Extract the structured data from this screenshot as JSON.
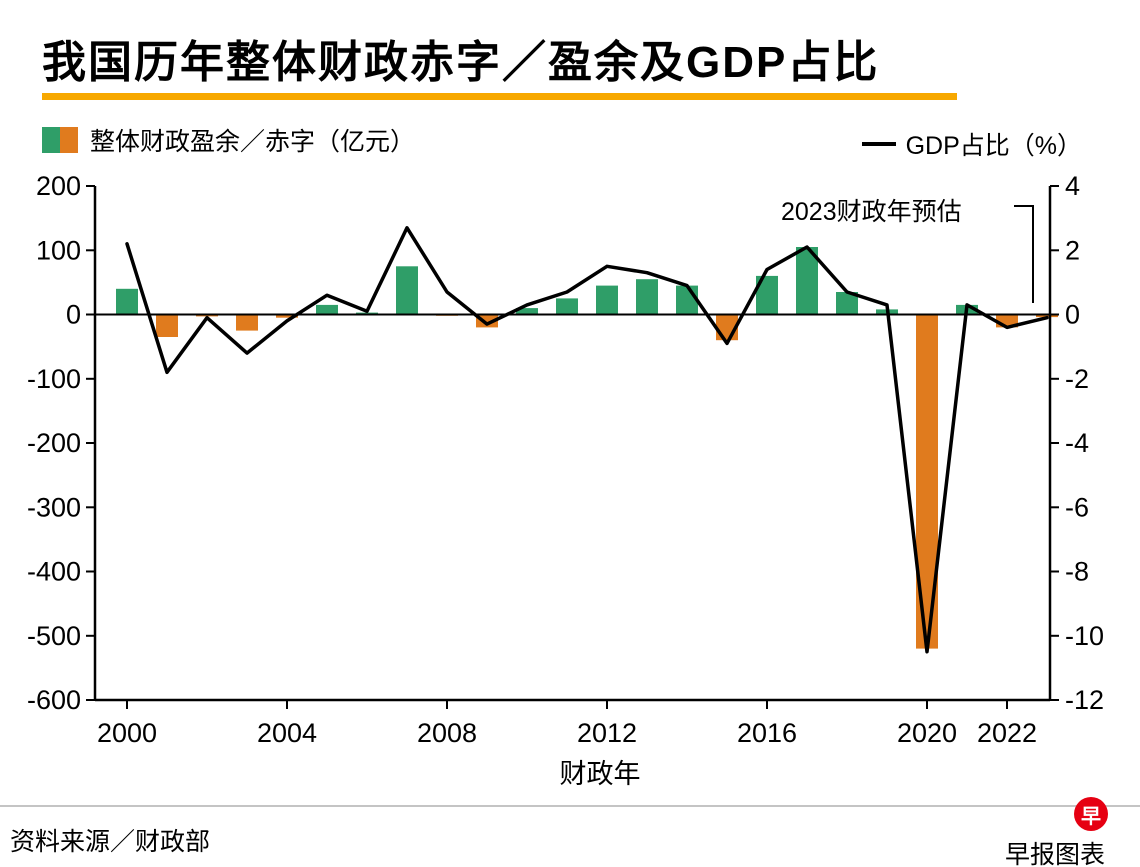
{
  "header": {
    "title": "我国历年整体财政赤字／盈余及GDP占比",
    "underline_color": "#f7a800"
  },
  "legend": {
    "bars_label": "整体财政盈余／赤字（亿元）",
    "line_label": "GDP占比（%）"
  },
  "annotation": {
    "text": "2023财政年预估"
  },
  "footer": {
    "source": "资料来源／财政部",
    "credit": "早报图表",
    "logo_char": "早",
    "logo_color": "#e60012"
  },
  "chart_data": {
    "type": "bar",
    "title": "我国历年整体财政赤字／盈余及GDP占比",
    "x": [
      2000,
      2001,
      2002,
      2003,
      2004,
      2005,
      2006,
      2007,
      2008,
      2009,
      2010,
      2011,
      2012,
      2013,
      2014,
      2015,
      2016,
      2017,
      2018,
      2019,
      2020,
      2021,
      2022,
      2023
    ],
    "series": [
      {
        "name": "整体财政盈余／赤字（亿元）",
        "type": "bar",
        "axis": "left",
        "unit": "亿元",
        "color_positive": "#2f9e68",
        "color_negative": "#e07b1e",
        "values": [
          40,
          -35,
          -3,
          -25,
          -5,
          15,
          3,
          75,
          -2,
          -20,
          10,
          25,
          45,
          55,
          45,
          -40,
          60,
          105,
          35,
          8,
          -520,
          15,
          -20,
          -4
        ]
      },
      {
        "name": "GDP占比（%）",
        "type": "line",
        "axis": "right",
        "unit": "%",
        "color": "#000000",
        "values": [
          2.2,
          -1.8,
          -0.1,
          -1.2,
          -0.2,
          0.6,
          0.1,
          2.7,
          0.7,
          -0.3,
          0.3,
          0.7,
          1.5,
          1.3,
          0.9,
          -0.9,
          1.4,
          2.1,
          0.7,
          0.3,
          -10.5,
          0.3,
          -0.4,
          -0.1
        ]
      }
    ],
    "left_axis": {
      "range": [
        -600,
        200
      ],
      "ticks": [
        200,
        100,
        0,
        -100,
        -200,
        -300,
        -400,
        -500,
        -600
      ]
    },
    "right_axis": {
      "range": [
        -12,
        4
      ],
      "ticks": [
        4,
        2,
        0,
        -2,
        -4,
        -6,
        -8,
        -10,
        -12
      ]
    },
    "x_axis": {
      "label": "财政年",
      "tick_labels": [
        2000,
        2004,
        2008,
        2012,
        2016,
        2020,
        2022
      ]
    },
    "annotation": "2023财政年预估",
    "grid": false,
    "legend_position": "top"
  }
}
